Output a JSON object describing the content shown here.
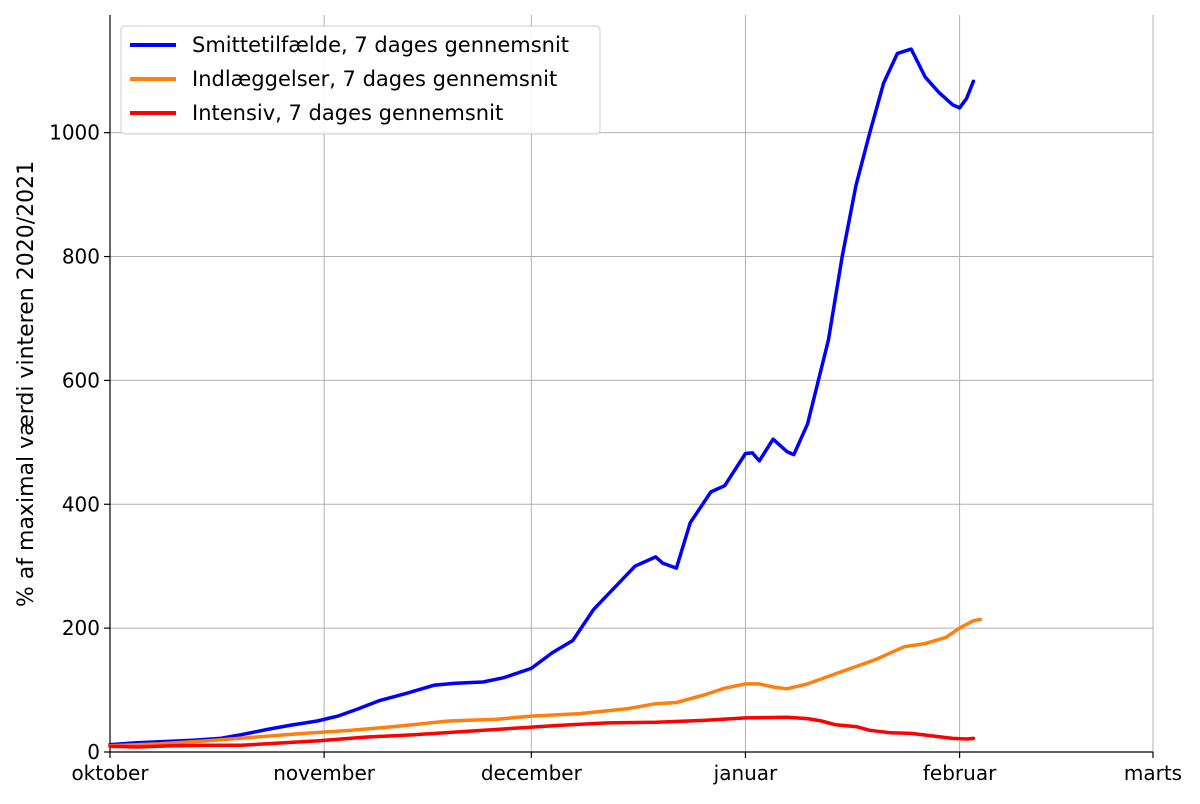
{
  "chart_data": {
    "type": "line",
    "ylabel": "% af maximal værdi vinteren 2020/2021",
    "ylim": [
      0,
      1190
    ],
    "xlim": [
      "2021-10-01",
      "2022-03-01"
    ],
    "grid": true,
    "legend_placement": "top-left",
    "x_ticks": [
      {
        "date": "2021-10-01",
        "label": "oktober"
      },
      {
        "date": "2021-11-01",
        "label": "november"
      },
      {
        "date": "2021-12-01",
        "label": "december"
      },
      {
        "date": "2022-01-01",
        "label": "januar"
      },
      {
        "date": "2022-02-01",
        "label": "februar"
      },
      {
        "date": "2022-03-01",
        "label": "marts"
      }
    ],
    "y_ticks": [
      0,
      200,
      400,
      600,
      800,
      1000
    ],
    "series": [
      {
        "name": "Smittetilfælde, 7 dages gennemsnit",
        "color": "#0000ff",
        "points": [
          [
            "2021-10-01",
            12
          ],
          [
            "2021-10-05",
            15
          ],
          [
            "2021-10-09",
            17
          ],
          [
            "2021-10-13",
            19
          ],
          [
            "2021-10-17",
            22
          ],
          [
            "2021-10-20",
            28
          ],
          [
            "2021-10-24",
            37
          ],
          [
            "2021-10-27",
            43
          ],
          [
            "2021-10-31",
            50
          ],
          [
            "2021-11-03",
            58
          ],
          [
            "2021-11-06",
            70
          ],
          [
            "2021-11-09",
            83
          ],
          [
            "2021-11-13",
            95
          ],
          [
            "2021-11-17",
            108
          ],
          [
            "2021-11-20",
            111
          ],
          [
            "2021-11-24",
            113
          ],
          [
            "2021-11-27",
            120
          ],
          [
            "2021-12-01",
            135
          ],
          [
            "2021-12-04",
            160
          ],
          [
            "2021-12-07",
            180
          ],
          [
            "2021-12-10",
            230
          ],
          [
            "2021-12-13",
            265
          ],
          [
            "2021-12-16",
            300
          ],
          [
            "2021-12-19",
            315
          ],
          [
            "2021-12-20",
            305
          ],
          [
            "2021-12-22",
            297
          ],
          [
            "2021-12-24",
            370
          ],
          [
            "2021-12-27",
            420
          ],
          [
            "2021-12-29",
            430
          ],
          [
            "2022-01-01",
            482
          ],
          [
            "2022-01-02",
            483
          ],
          [
            "2022-01-03",
            470
          ],
          [
            "2022-01-05",
            505
          ],
          [
            "2022-01-07",
            485
          ],
          [
            "2022-01-08",
            480
          ],
          [
            "2022-01-10",
            530
          ],
          [
            "2022-01-13",
            665
          ],
          [
            "2022-01-15",
            800
          ],
          [
            "2022-01-17",
            915
          ],
          [
            "2022-01-19",
            1000
          ],
          [
            "2022-01-21",
            1080
          ],
          [
            "2022-01-23",
            1128
          ],
          [
            "2022-01-25",
            1135
          ],
          [
            "2022-01-27",
            1090
          ],
          [
            "2022-01-29",
            1065
          ],
          [
            "2022-01-31",
            1045
          ],
          [
            "2022-02-01",
            1040
          ],
          [
            "2022-02-02",
            1055
          ],
          [
            "2022-02-03",
            1083
          ]
        ]
      },
      {
        "name": "Indlæggelser, 7 dages gennemsnit",
        "color": "#ff7f0e",
        "points": [
          [
            "2021-10-01",
            10
          ],
          [
            "2021-10-08",
            13
          ],
          [
            "2021-10-15",
            18
          ],
          [
            "2021-10-22",
            24
          ],
          [
            "2021-10-29",
            30
          ],
          [
            "2021-11-05",
            35
          ],
          [
            "2021-11-12",
            42
          ],
          [
            "2021-11-19",
            50
          ],
          [
            "2021-11-26",
            53
          ],
          [
            "2021-12-01",
            58
          ],
          [
            "2021-12-08",
            62
          ],
          [
            "2021-12-15",
            70
          ],
          [
            "2021-12-19",
            78
          ],
          [
            "2021-12-22",
            80
          ],
          [
            "2021-12-26",
            92
          ],
          [
            "2021-12-29",
            103
          ],
          [
            "2022-01-01",
            110
          ],
          [
            "2022-01-03",
            110
          ],
          [
            "2022-01-05",
            105
          ],
          [
            "2022-01-07",
            102
          ],
          [
            "2022-01-10",
            110
          ],
          [
            "2022-01-13",
            122
          ],
          [
            "2022-01-17",
            138
          ],
          [
            "2022-01-20",
            150
          ],
          [
            "2022-01-24",
            170
          ],
          [
            "2022-01-27",
            175
          ],
          [
            "2022-01-30",
            185
          ],
          [
            "2022-02-01",
            200
          ],
          [
            "2022-02-03",
            212
          ],
          [
            "2022-02-04",
            214
          ]
        ]
      },
      {
        "name": "Intensiv, 7 dages gennemsnit",
        "color": "#ff0000",
        "points": [
          [
            "2021-10-01",
            9
          ],
          [
            "2021-10-05",
            8
          ],
          [
            "2021-10-10",
            10
          ],
          [
            "2021-10-15",
            11
          ],
          [
            "2021-10-20",
            11
          ],
          [
            "2021-10-25",
            14
          ],
          [
            "2021-10-31",
            18
          ],
          [
            "2021-11-07",
            24
          ],
          [
            "2021-11-14",
            28
          ],
          [
            "2021-11-21",
            33
          ],
          [
            "2021-11-28",
            38
          ],
          [
            "2021-12-05",
            43
          ],
          [
            "2021-12-12",
            47
          ],
          [
            "2021-12-19",
            48
          ],
          [
            "2021-12-26",
            51
          ],
          [
            "2022-01-01",
            55
          ],
          [
            "2022-01-07",
            56
          ],
          [
            "2022-01-10",
            54
          ],
          [
            "2022-01-12",
            50
          ],
          [
            "2022-01-14",
            44
          ],
          [
            "2022-01-17",
            41
          ],
          [
            "2022-01-19",
            35
          ],
          [
            "2022-01-22",
            31
          ],
          [
            "2022-01-25",
            30
          ],
          [
            "2022-01-28",
            26
          ],
          [
            "2022-01-31",
            22
          ],
          [
            "2022-02-02",
            21
          ],
          [
            "2022-02-03",
            22
          ]
        ]
      }
    ]
  }
}
